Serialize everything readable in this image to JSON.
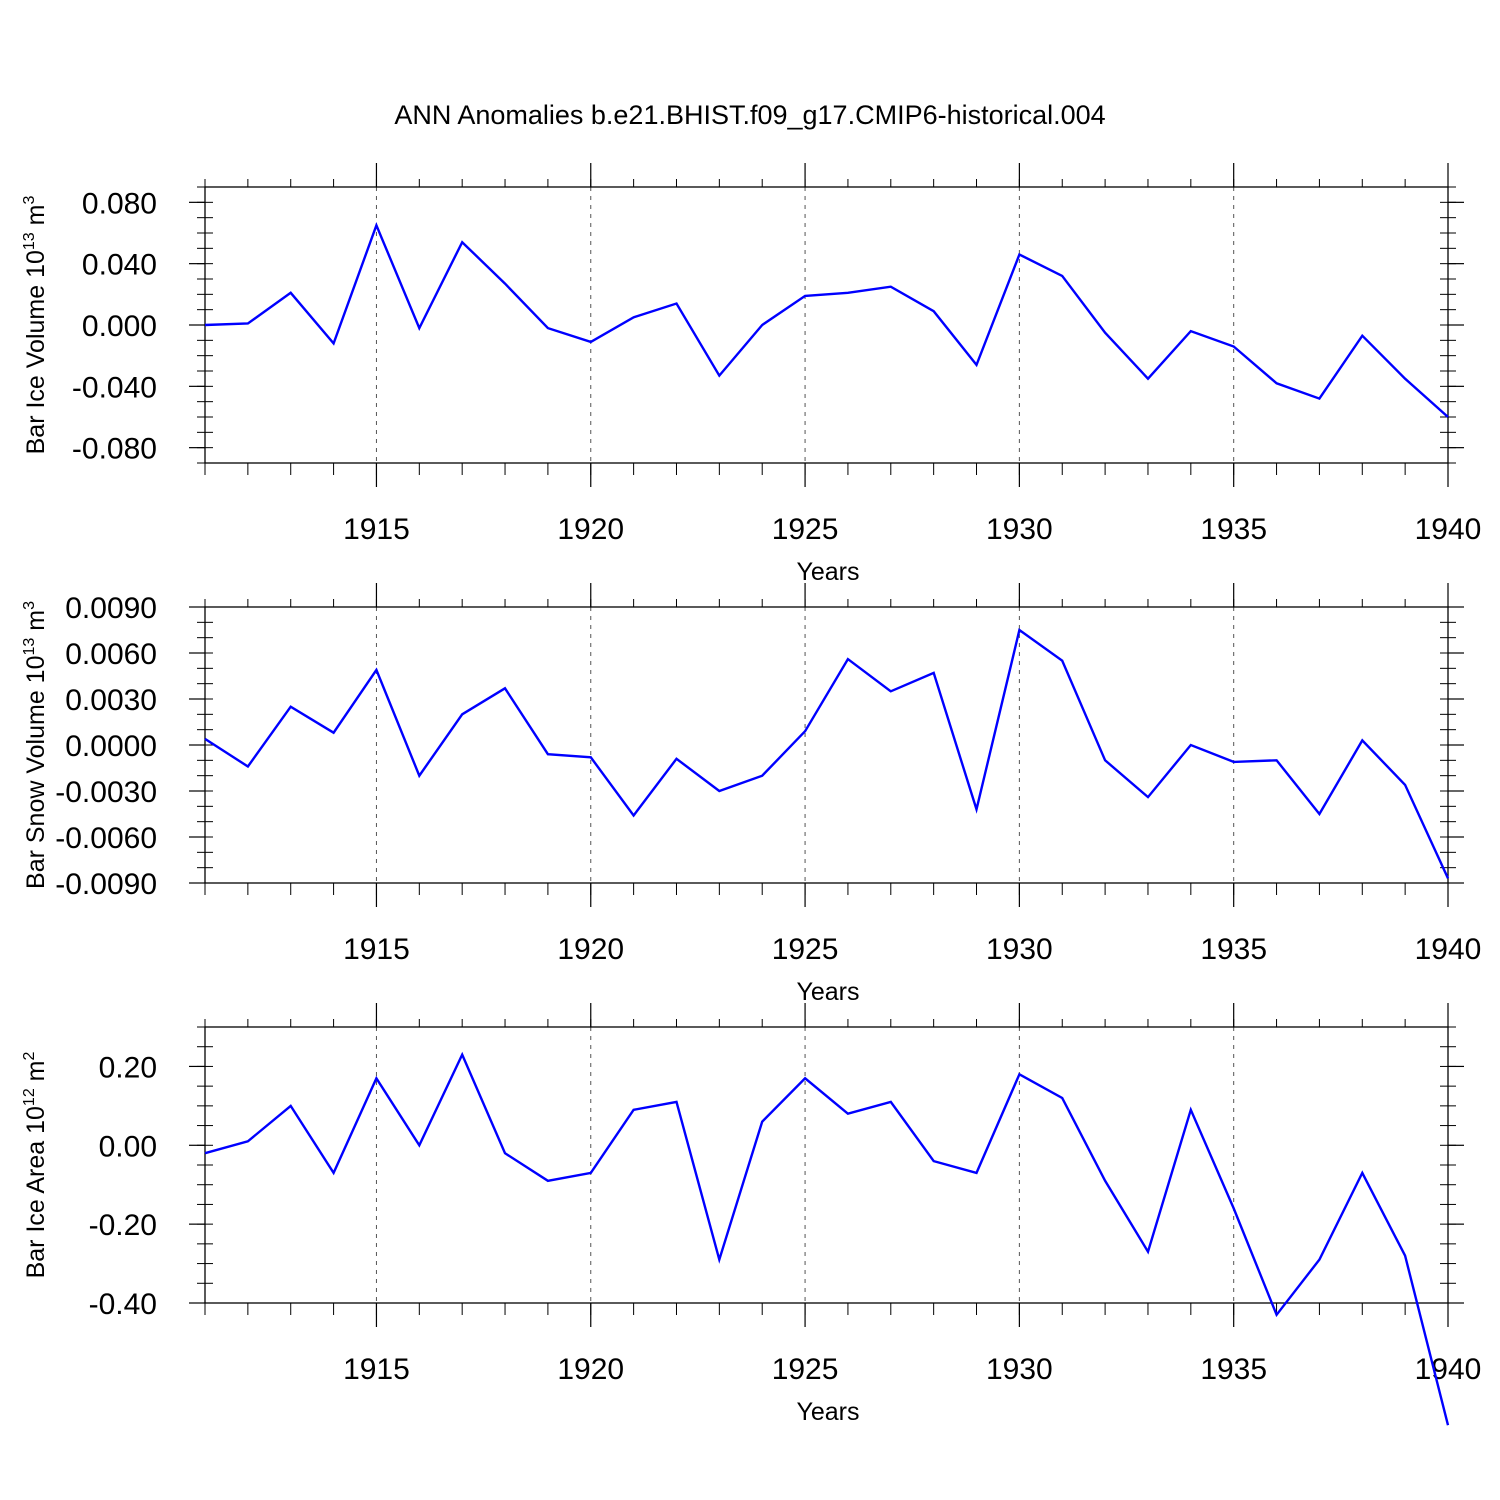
{
  "title": "ANN Anomalies b.e21.BHIST.f09_g17.CMIP6-historical.004",
  "colors": {
    "line": "#0000ff",
    "axis": "#000000",
    "grid": "#555555",
    "background": "#ffffff"
  },
  "chart_data": [
    {
      "type": "line",
      "ylabel": "Bar Ice Volume 10",
      "ylabel_exp": "13",
      "ylabel_unit": " m",
      "ylabel_unit_exp": "3",
      "xlabel": "Years",
      "xlim": [
        1911,
        1940
      ],
      "ylim": [
        -0.09,
        0.09
      ],
      "major_y": [
        0.08,
        0.04,
        0.0,
        -0.04,
        -0.08
      ],
      "y_tick_labels": [
        "0.080",
        "0.040",
        "0.000",
        "-0.040",
        "-0.080"
      ],
      "minor_y_step": 0.01,
      "major_x": [
        1915,
        1920,
        1925,
        1930,
        1935,
        1940
      ],
      "x_tick_labels": [
        "1915",
        "1920",
        "1925",
        "1930",
        "1935",
        "1940"
      ],
      "minor_x_step": 1,
      "grid": "vertical-dashed",
      "series": [
        {
          "name": "Bar Ice Volume",
          "x": [
            1911,
            1912,
            1913,
            1914,
            1915,
            1916,
            1917,
            1918,
            1919,
            1920,
            1921,
            1922,
            1923,
            1924,
            1925,
            1926,
            1927,
            1928,
            1929,
            1930,
            1931,
            1932,
            1933,
            1934,
            1935,
            1936,
            1937,
            1938,
            1939,
            1940
          ],
          "values": [
            0.0,
            0.001,
            0.021,
            -0.012,
            0.065,
            -0.002,
            0.054,
            0.027,
            -0.002,
            -0.011,
            0.005,
            0.014,
            -0.033,
            0.0,
            0.019,
            0.021,
            0.025,
            0.009,
            -0.026,
            0.046,
            0.032,
            -0.005,
            -0.035,
            -0.004,
            -0.014,
            -0.038,
            -0.048,
            -0.007,
            -0.035,
            -0.06
          ]
        }
      ]
    },
    {
      "type": "line",
      "ylabel": "Bar Snow Volume 10",
      "ylabel_exp": "13",
      "ylabel_unit": " m",
      "ylabel_unit_exp": "3",
      "xlabel": "Years",
      "xlim": [
        1911,
        1940
      ],
      "ylim": [
        -0.009,
        0.009
      ],
      "major_y": [
        0.009,
        0.006,
        0.003,
        0.0,
        -0.003,
        -0.006,
        -0.009
      ],
      "y_tick_labels": [
        "0.0090",
        "0.0060",
        "0.0030",
        "0.0000",
        "-0.0030",
        "-0.0060",
        "-0.0090"
      ],
      "minor_y_step": 0.001,
      "major_x": [
        1915,
        1920,
        1925,
        1930,
        1935,
        1940
      ],
      "x_tick_labels": [
        "1915",
        "1920",
        "1925",
        "1930",
        "1935",
        "1940"
      ],
      "minor_x_step": 1,
      "grid": "vertical-dashed",
      "series": [
        {
          "name": "Bar Snow Volume",
          "x": [
            1911,
            1912,
            1913,
            1914,
            1915,
            1916,
            1917,
            1918,
            1919,
            1920,
            1921,
            1922,
            1923,
            1924,
            1925,
            1926,
            1927,
            1928,
            1929,
            1930,
            1931,
            1932,
            1933,
            1934,
            1935,
            1936,
            1937,
            1938,
            1939,
            1940
          ],
          "values": [
            0.0004,
            -0.0014,
            0.0025,
            0.0008,
            0.0049,
            -0.002,
            0.002,
            0.0037,
            -0.0006,
            -0.0008,
            -0.0046,
            -0.0009,
            -0.003,
            -0.002,
            0.0009,
            0.0056,
            0.0035,
            0.0047,
            -0.0042,
            0.0075,
            0.0055,
            -0.001,
            -0.0034,
            0.0,
            -0.0011,
            -0.001,
            -0.0045,
            0.0003,
            -0.0026,
            -0.0087
          ]
        }
      ]
    },
    {
      "type": "line",
      "ylabel": "Bar Ice Area 10",
      "ylabel_exp": "12",
      "ylabel_unit": " m",
      "ylabel_unit_exp": "2",
      "xlabel": "Years",
      "xlim": [
        1911,
        1940
      ],
      "ylim": [
        -0.4,
        0.3
      ],
      "major_y": [
        0.2,
        0.0,
        -0.2,
        -0.4
      ],
      "y_tick_labels": [
        "0.20",
        "0.00",
        "-0.20",
        "-0.40"
      ],
      "minor_y_step": 0.05,
      "major_x": [
        1915,
        1920,
        1925,
        1930,
        1935,
        1940
      ],
      "x_tick_labels": [
        "1915",
        "1920",
        "1925",
        "1930",
        "1935",
        "1940"
      ],
      "minor_x_step": 1,
      "grid": "vertical-dashed",
      "series": [
        {
          "name": "Bar Ice Area",
          "x": [
            1911,
            1912,
            1913,
            1914,
            1915,
            1916,
            1917,
            1918,
            1919,
            1920,
            1921,
            1922,
            1923,
            1924,
            1925,
            1926,
            1927,
            1928,
            1929,
            1930,
            1931,
            1932,
            1933,
            1934,
            1935,
            1936,
            1937,
            1938,
            1939,
            1940
          ],
          "values": [
            -0.02,
            0.01,
            0.1,
            -0.07,
            0.17,
            0.0,
            0.23,
            -0.02,
            -0.09,
            -0.07,
            0.09,
            0.11,
            -0.29,
            0.06,
            0.17,
            0.08,
            0.11,
            -0.04,
            -0.07,
            0.18,
            0.12,
            -0.09,
            -0.27,
            0.09,
            -0.16,
            -0.43,
            -0.29,
            -0.07,
            -0.28,
            -0.71
          ]
        }
      ]
    }
  ]
}
